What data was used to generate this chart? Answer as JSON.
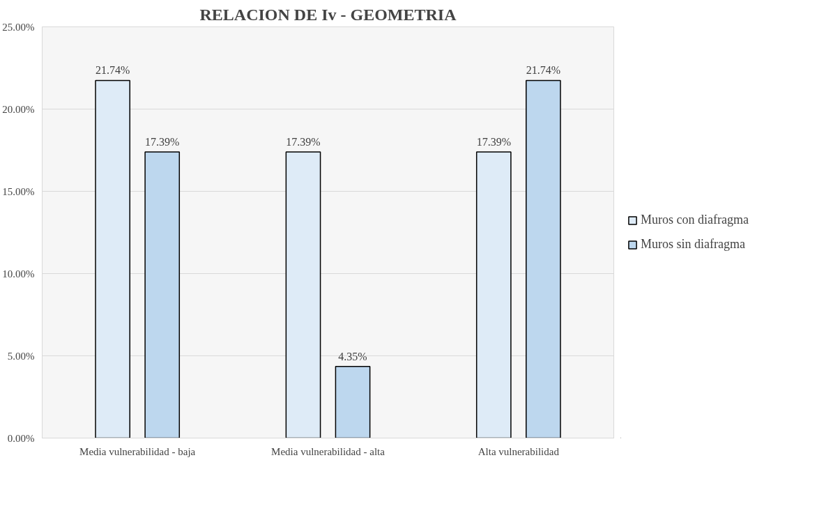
{
  "chart_data": {
    "type": "bar",
    "title": "RELACION DE Iv - GEOMETRIA",
    "categories": [
      "Media vulnerabilidad - baja",
      "Media vulnerabilidad - alta",
      "Alta vulnerabilidad"
    ],
    "series": [
      {
        "name": "Muros con diafragma",
        "color": "#deebf7",
        "values": [
          21.74,
          17.39,
          17.39
        ],
        "value_labels": [
          "21.74%",
          "17.39%",
          "17.39%"
        ]
      },
      {
        "name": "Muros sin diafragma",
        "color": "#bdd7ee",
        "values": [
          17.39,
          4.35,
          21.74
        ],
        "value_labels": [
          "17.39%",
          "4.35%",
          "21.74%"
        ]
      }
    ],
    "ylim": [
      0,
      25
    ],
    "yticks": [
      {
        "value": 0,
        "label": "0.00%"
      },
      {
        "value": 5,
        "label": "5.00%"
      },
      {
        "value": 10,
        "label": "10.00%"
      },
      {
        "value": 15,
        "label": "15.00%"
      },
      {
        "value": 20,
        "label": "20.00%"
      },
      {
        "value": 25,
        "label": "25.00%"
      }
    ],
    "grid": "y",
    "legend": "right"
  }
}
